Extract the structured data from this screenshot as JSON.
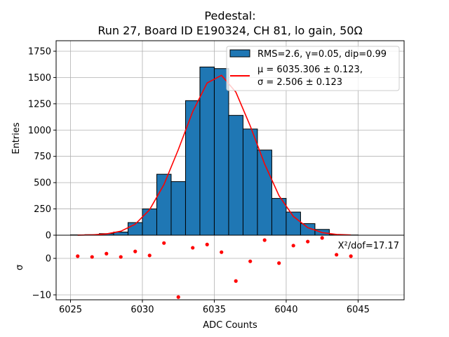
{
  "chart_data": [
    {
      "type": "bar",
      "title": [
        "Pedestal:",
        "Run 27, Board ID E190324, CH 81, lo gain, 50Ω"
      ],
      "ylabel": "Entries",
      "xlim": [
        6024.0,
        6048.2
      ],
      "ylim": [
        0,
        1850
      ],
      "grid": true,
      "yticks": [
        0,
        250,
        500,
        750,
        1000,
        1250,
        1500,
        1750
      ],
      "ytick_labels": [
        "0",
        "250",
        "500",
        "750",
        "1000",
        "1250",
        "1500",
        "1750"
      ],
      "bin_edges_start": 6025,
      "bin_width": 1,
      "values": [
        3,
        5,
        15,
        30,
        120,
        250,
        580,
        510,
        1280,
        1600,
        1585,
        1140,
        1010,
        810,
        350,
        220,
        110,
        55,
        5,
        2
      ],
      "bar_color": "#1f77b4",
      "fit": {
        "type": "gaussian",
        "mu": 6035.306,
        "sigma": 2.506,
        "amplitude": 1525,
        "color": "#ff0000"
      },
      "legend": {
        "placement": "top-right",
        "entries": [
          "RMS=2.6, γ=0.05, dip=0.99",
          "μ = 6035.306 ± 0.123,",
          "σ = 2.506 ± 0.123"
        ]
      }
    },
    {
      "type": "scatter",
      "xlabel": "ADC Counts",
      "ylabel": "σ",
      "xlim": [
        6024.0,
        6048.2
      ],
      "ylim": [
        -11.35,
        6.35
      ],
      "grid": true,
      "xticks": [
        6025,
        6030,
        6035,
        6040,
        6045
      ],
      "xtick_labels": [
        "6025",
        "6030",
        "6035",
        "6040",
        "6045"
      ],
      "yticks": [
        0,
        -10
      ],
      "ytick_labels": [
        "0",
        "−10"
      ],
      "x": [
        6025.5,
        6026.5,
        6027.5,
        6028.5,
        6029.5,
        6030.5,
        6031.5,
        6032.5,
        6033.5,
        6034.5,
        6035.5,
        6036.5,
        6037.5,
        6038.5,
        6039.5,
        6040.5,
        6041.5,
        6042.5,
        6043.5,
        6044.5
      ],
      "y": [
        0.6,
        0.4,
        1.3,
        0.4,
        1.9,
        0.8,
        4.2,
        -10.6,
        2.9,
        3.8,
        1.7,
        -6.2,
        -0.8,
        5.0,
        -1.3,
        3.5,
        4.6,
        5.6,
        1.0,
        0.6
      ],
      "point_color": "#ff0000",
      "annotation": "X²/dof=17.17"
    }
  ]
}
